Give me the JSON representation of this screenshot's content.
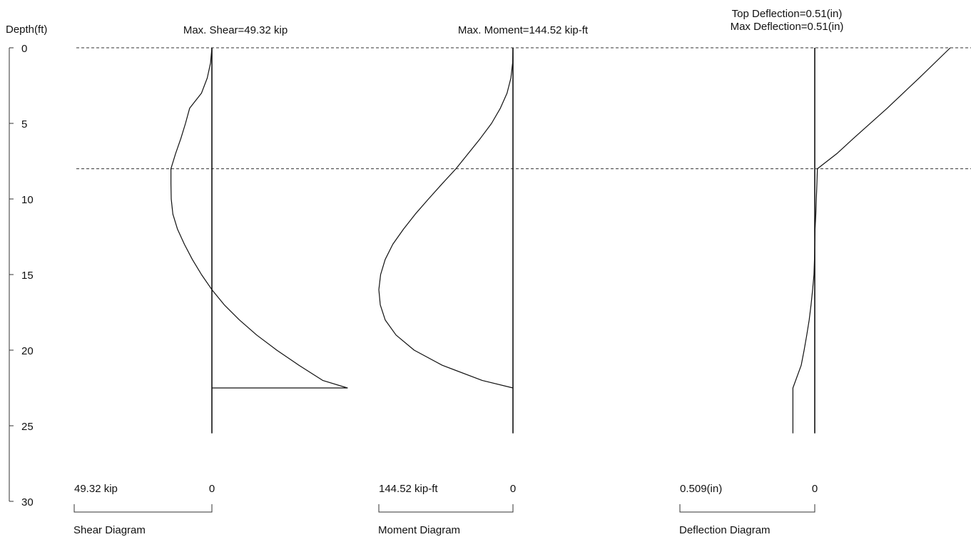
{
  "chart_data": {
    "type": "line",
    "depth_axis": {
      "label": "Depth(ft)",
      "ticks": [
        0,
        5,
        10,
        15,
        20,
        25,
        30
      ],
      "ylim": [
        0,
        30
      ],
      "inverted": true
    },
    "reference_lines": {
      "depths": [
        0,
        8
      ],
      "style": "dashed"
    },
    "pile_bottom_depth": 25.5,
    "diagrams": [
      {
        "id": "shear",
        "header": "Max. Shear=49.32 kip",
        "scale_left_label": "49.32 kip",
        "scale_right_label": "0",
        "title": "Shear Diagram",
        "scale_max": 49.32,
        "points": [
          [
            0,
            0
          ],
          [
            1.0,
            -0.5
          ],
          [
            2.0,
            -1.7
          ],
          [
            3.0,
            -3.8
          ],
          [
            4.0,
            -8.1
          ],
          [
            5.0,
            -9.6
          ],
          [
            6.0,
            -11.3
          ],
          [
            7.0,
            -13.2
          ],
          [
            8.0,
            -14.9
          ],
          [
            9.0,
            -14.9
          ],
          [
            10.0,
            -14.8
          ],
          [
            11.0,
            -14.2
          ],
          [
            12.0,
            -12.5
          ],
          [
            13.0,
            -10.0
          ],
          [
            14.0,
            -7.1
          ],
          [
            15.0,
            -3.8
          ],
          [
            16.0,
            0
          ],
          [
            17.0,
            4.5
          ],
          [
            18.0,
            10.0
          ],
          [
            19.0,
            16.3
          ],
          [
            20.0,
            23.6
          ],
          [
            21.0,
            31.7
          ],
          [
            22.0,
            40.3
          ],
          [
            22.5,
            49.32
          ],
          [
            22.5,
            0
          ]
        ]
      },
      {
        "id": "moment",
        "header": "Max. Moment=144.52 kip-ft",
        "scale_left_label": "144.52 kip-ft",
        "scale_right_label": "0",
        "title": "Moment Diagram",
        "scale_max": 144.52,
        "points": [
          [
            0,
            0
          ],
          [
            1.0,
            -0.4
          ],
          [
            2.0,
            -2.2
          ],
          [
            3.0,
            -6.4
          ],
          [
            4.0,
            -13.6
          ],
          [
            5.0,
            -23.1
          ],
          [
            6.0,
            -35.2
          ],
          [
            7.0,
            -48.3
          ],
          [
            8.0,
            -61.4
          ],
          [
            9.0,
            -76.4
          ],
          [
            10.0,
            -91.0
          ],
          [
            11.0,
            -105.2
          ],
          [
            12.0,
            -118.0
          ],
          [
            13.0,
            -129.5
          ],
          [
            14.0,
            -137.7
          ],
          [
            15.0,
            -142.6
          ],
          [
            16.0,
            -144.52
          ],
          [
            17.0,
            -143.0
          ],
          [
            18.0,
            -137.7
          ],
          [
            19.0,
            -126.0
          ],
          [
            20.0,
            -106.5
          ],
          [
            21.0,
            -76.2
          ],
          [
            22.0,
            -33.2
          ],
          [
            22.5,
            0
          ]
        ]
      },
      {
        "id": "deflection",
        "header": "Top Deflection=0.51(in)",
        "header2": "Max Deflection=0.51(in)",
        "scale_left_label": "0.509(in)",
        "scale_right_label": "0",
        "title": "Deflection Diagram",
        "scale_max": 0.509,
        "points": [
          [
            0,
            0.509
          ],
          [
            2.0,
            0.392
          ],
          [
            4.0,
            0.272
          ],
          [
            6.0,
            0.145
          ],
          [
            7.0,
            0.083
          ],
          [
            8.0,
            0.01
          ],
          [
            9.0,
            0.008
          ],
          [
            10.0,
            0.006
          ],
          [
            11.0,
            0.004
          ],
          [
            12.0,
            0.001
          ],
          [
            13.0,
            0.0
          ],
          [
            14.0,
            -0.001
          ],
          [
            15.0,
            -0.003
          ],
          [
            16.0,
            -0.008
          ],
          [
            17.0,
            -0.014
          ],
          [
            18.0,
            -0.021
          ],
          [
            19.0,
            -0.03
          ],
          [
            20.0,
            -0.04
          ],
          [
            21.0,
            -0.051
          ],
          [
            22.5,
            -0.082
          ],
          [
            25.5,
            -0.082
          ]
        ]
      }
    ]
  }
}
